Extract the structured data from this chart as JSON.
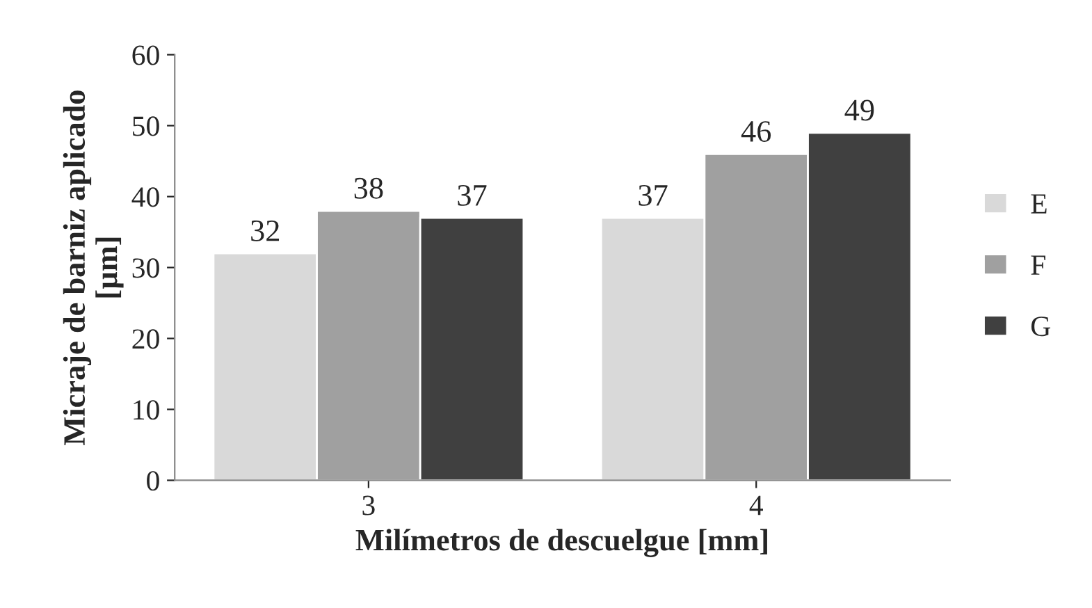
{
  "chart_data": {
    "type": "bar",
    "xlabel": "Milímetros de descuelgue [mm]",
    "ylabel": "Micraje de barniz aplicado\n[µm]",
    "categories": [
      "3",
      "4"
    ],
    "series": [
      {
        "name": "E",
        "color": "#d9d9d9",
        "values": [
          32,
          37
        ]
      },
      {
        "name": "F",
        "color": "#a0a0a0",
        "values": [
          38,
          46
        ]
      },
      {
        "name": "G",
        "color": "#404040",
        "values": [
          37,
          49
        ]
      }
    ],
    "ylim": [
      0,
      60
    ],
    "yticks": [
      0,
      10,
      20,
      30,
      40,
      50,
      60
    ],
    "data_labels": true,
    "legend": "right",
    "grid": false
  }
}
